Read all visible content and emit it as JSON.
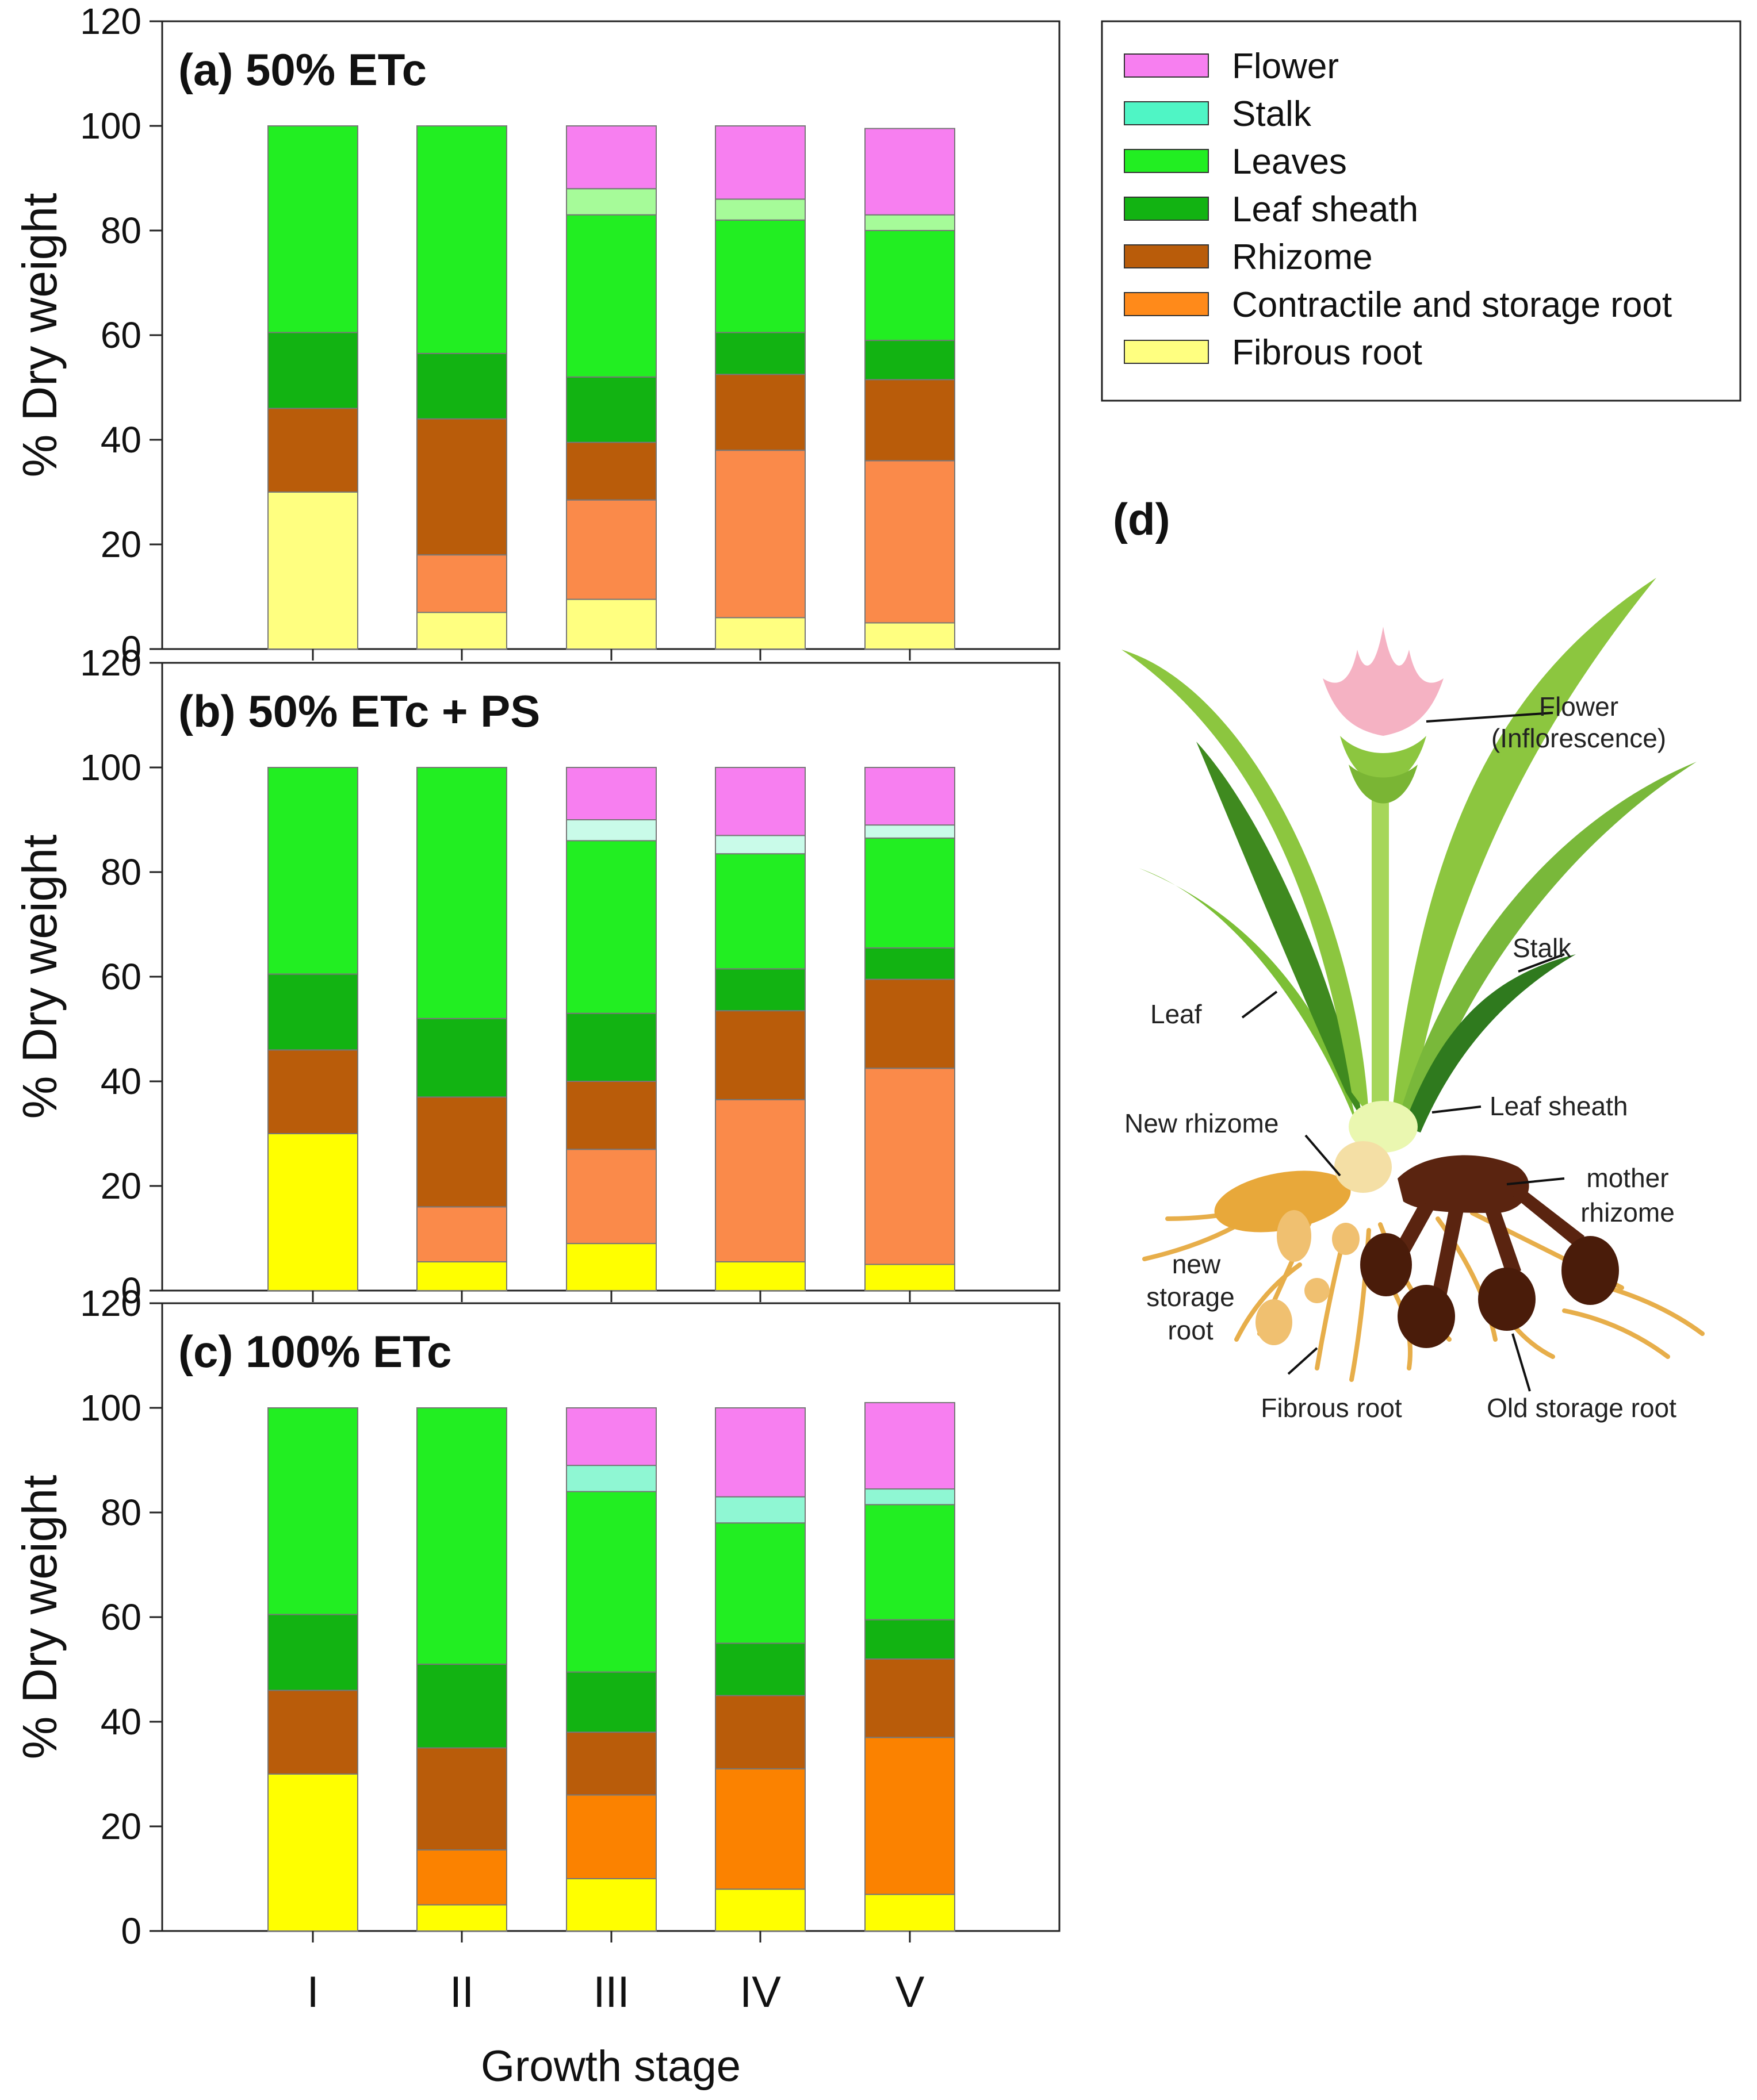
{
  "figure": {
    "x_axis_label": "Growth stage",
    "y_axis_label": "% Dry weight",
    "panel_d_label": "(d)"
  },
  "legend": {
    "items": [
      {
        "name": "Flower",
        "color": "#f77ff0"
      },
      {
        "name": "Stalk",
        "color": "#4ff5c5"
      },
      {
        "name": "Leaves",
        "color": "#22ee22"
      },
      {
        "name": "Leaf sheath",
        "color": "#12b312"
      },
      {
        "name": "Rhizome",
        "color": "#b95c0a"
      },
      {
        "name": "Contractile and storage root",
        "color": "#ff8a1a"
      },
      {
        "name": "Fibrous root",
        "color": "#ffff80"
      }
    ]
  },
  "chart_data": [
    {
      "type": "bar",
      "stacked": true,
      "title": "(a) 50% ETc",
      "xlabel": "",
      "ylabel": "% Dry weight",
      "ylim": [
        0,
        120
      ],
      "yticks": [
        0,
        20,
        40,
        60,
        80,
        100,
        120
      ],
      "categories": [
        "I",
        "II",
        "III",
        "IV",
        "V"
      ],
      "colors": [
        "#ffff80",
        "#fa8a4a",
        "#b95c0a",
        "#12b312",
        "#22ee22",
        "#a6fb99",
        "#f77ff0"
      ],
      "series": [
        {
          "name": "Fibrous root",
          "values": [
            30,
            7,
            9.5,
            6,
            5
          ]
        },
        {
          "name": "Contractile and storage root",
          "values": [
            0,
            11,
            19,
            32,
            31
          ]
        },
        {
          "name": "Rhizome",
          "values": [
            16,
            26,
            11,
            14.5,
            15.5
          ]
        },
        {
          "name": "Leaf sheath",
          "values": [
            14.5,
            12.5,
            12.5,
            8,
            7.5
          ]
        },
        {
          "name": "Leaves",
          "values": [
            39.5,
            43.5,
            31,
            21.5,
            21
          ]
        },
        {
          "name": "Stalk",
          "values": [
            0,
            0,
            5,
            4,
            3
          ]
        },
        {
          "name": "Flower",
          "values": [
            0,
            0,
            12,
            14,
            16.5
          ]
        }
      ]
    },
    {
      "type": "bar",
      "stacked": true,
      "title": "(b) 50% ETc + PS",
      "xlabel": "",
      "ylabel": "% Dry weight",
      "ylim": [
        0,
        120
      ],
      "yticks": [
        0,
        20,
        40,
        60,
        80,
        100,
        120
      ],
      "categories": [
        "I",
        "II",
        "III",
        "IV",
        "V"
      ],
      "colors": [
        "#ffff00",
        "#fa8a4a",
        "#b95c0a",
        "#12b312",
        "#22ee22",
        "#c9fbe9",
        "#f77ff0"
      ],
      "series": [
        {
          "name": "Fibrous root",
          "values": [
            30,
            5.5,
            9,
            5.5,
            5
          ]
        },
        {
          "name": "Contractile and storage root",
          "values": [
            0,
            10.5,
            18,
            31,
            37.5
          ]
        },
        {
          "name": "Rhizome",
          "values": [
            16,
            21,
            13,
            17,
            17
          ]
        },
        {
          "name": "Leaf sheath",
          "values": [
            14.5,
            15,
            13,
            8,
            6
          ]
        },
        {
          "name": "Leaves",
          "values": [
            39.5,
            48,
            33,
            22,
            21
          ]
        },
        {
          "name": "Stalk",
          "values": [
            0,
            0,
            4,
            3.5,
            2.5
          ]
        },
        {
          "name": "Flower",
          "values": [
            0,
            0,
            10,
            13,
            11
          ]
        }
      ]
    },
    {
      "type": "bar",
      "stacked": true,
      "title": "(c) 100% ETc",
      "xlabel": "Growth stage",
      "ylabel": "% Dry weight",
      "ylim": [
        0,
        120
      ],
      "yticks": [
        0,
        20,
        40,
        60,
        80,
        100,
        120
      ],
      "categories": [
        "I",
        "II",
        "III",
        "IV",
        "V"
      ],
      "colors": [
        "#ffff00",
        "#fb8200",
        "#b95c0a",
        "#12b312",
        "#22ee22",
        "#8ff7d3",
        "#f77ff0"
      ],
      "series": [
        {
          "name": "Fibrous root",
          "values": [
            30,
            5,
            10,
            8,
            7
          ]
        },
        {
          "name": "Contractile and storage root",
          "values": [
            0,
            10.5,
            16,
            23,
            30
          ]
        },
        {
          "name": "Rhizome",
          "values": [
            16,
            19.5,
            12,
            14,
            15
          ]
        },
        {
          "name": "Leaf sheath",
          "values": [
            14.5,
            16,
            11.5,
            10,
            7.5
          ]
        },
        {
          "name": "Leaves",
          "values": [
            39.5,
            49,
            34.5,
            23,
            22
          ]
        },
        {
          "name": "Stalk",
          "values": [
            0,
            0,
            5,
            5,
            3
          ]
        },
        {
          "name": "Flower",
          "values": [
            0,
            0,
            11,
            17,
            16.5
          ]
        }
      ]
    }
  ],
  "diagram": {
    "labels": {
      "flower": "Flower",
      "flower_sub": "(Inflorescence)",
      "stalk": "Stalk",
      "leaf": "Leaf",
      "leaf_sheath": "Leaf sheath",
      "new_rhizome": "New rhizome",
      "mother_rhizome_1": "mother",
      "mother_rhizome_2": "rhizome",
      "new_storage_1": "new",
      "new_storage_2": "storage",
      "new_storage_3": "root",
      "fibrous_root": "Fibrous root",
      "old_storage_root": "Old storage root"
    }
  }
}
